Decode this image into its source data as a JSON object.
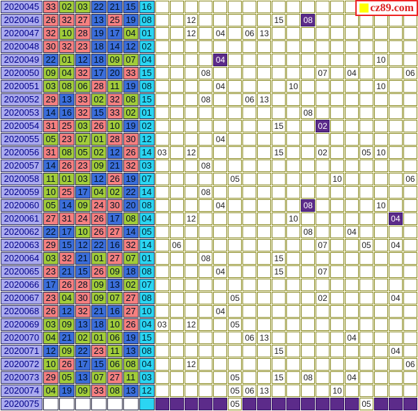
{
  "logo": {
    "text": "cz89.com",
    "square_color": "#ffff00",
    "text_color": "#dd2222",
    "border_color": "#ee2222"
  },
  "colors": {
    "period_bg": "#aaaaee",
    "zone_green_1_11": "#a2cc3a",
    "zone_blue_12_22": "#3b6eda",
    "zone_red_23_33": "#f58080",
    "blue_ball_bg": "#2bd5f2",
    "hit_purple": "#5c2b8a",
    "grid_border": "#888822",
    "page_bg": "#fffff0"
  },
  "chart_data": {
    "type": "table",
    "grid_columns": 18,
    "legend": "rows: period | 6 red-zone balls (G=01-11 green, B=12-22 blue, R=23-33 red) | blue ball | 18 miss-grid cells; hit=purple cell",
    "rows": [
      {
        "period": "2020045",
        "reds": [
          "33R",
          "02G",
          "03G",
          "22B",
          "21B",
          "15B"
        ],
        "blue": "16",
        "marks": []
      },
      {
        "period": "2020046",
        "reds": [
          "26R",
          "32R",
          "27R",
          "13B",
          "25R",
          "19B"
        ],
        "blue": "08",
        "marks": [
          {
            "c": 2,
            "v": "12"
          },
          {
            "c": 8,
            "v": "15"
          },
          {
            "c": 10,
            "v": "08",
            "hit": true
          }
        ]
      },
      {
        "period": "2020047",
        "reds": [
          "32R",
          "10G",
          "28R",
          "19B",
          "17B",
          "04G"
        ],
        "blue": "01",
        "marks": [
          {
            "c": 2,
            "v": "12"
          },
          {
            "c": 4,
            "v": "04"
          },
          {
            "c": 6,
            "v": "06"
          },
          {
            "c": 7,
            "v": "13"
          }
        ]
      },
      {
        "period": "2020048",
        "reds": [
          "30R",
          "32R",
          "23R",
          "18B",
          "14B",
          "12B"
        ],
        "blue": "02",
        "marks": []
      },
      {
        "period": "2020049",
        "reds": [
          "22B",
          "01G",
          "12B",
          "18B",
          "09G",
          "07G"
        ],
        "blue": "04",
        "marks": [
          {
            "c": 4,
            "v": "04",
            "hit": true
          },
          {
            "c": 15,
            "v": "10"
          }
        ]
      },
      {
        "period": "2020050",
        "reds": [
          "09G",
          "04G",
          "32R",
          "17B",
          "20B",
          "33R"
        ],
        "blue": "15",
        "marks": [
          {
            "c": 3,
            "v": "08"
          },
          {
            "c": 11,
            "v": "07"
          },
          {
            "c": 13,
            "v": "04"
          },
          {
            "c": 17,
            "v": "06"
          }
        ]
      },
      {
        "period": "2020051",
        "reds": [
          "03G",
          "08G",
          "06G",
          "28R",
          "11G",
          "19B"
        ],
        "blue": "08",
        "marks": [
          {
            "c": 4,
            "v": "04"
          },
          {
            "c": 9,
            "v": "10"
          },
          {
            "c": 15,
            "v": "10"
          }
        ]
      },
      {
        "period": "2020052",
        "reds": [
          "29R",
          "13B",
          "33R",
          "02G",
          "32R",
          "08G"
        ],
        "blue": "15",
        "marks": [
          {
            "c": 3,
            "v": "08"
          },
          {
            "c": 6,
            "v": "06"
          },
          {
            "c": 7,
            "v": "13"
          }
        ]
      },
      {
        "period": "2020053",
        "reds": [
          "14B",
          "16B",
          "32R",
          "15B",
          "33R",
          "02G"
        ],
        "blue": "01",
        "marks": [
          {
            "c": 10,
            "v": "08"
          }
        ]
      },
      {
        "period": "2020054",
        "reds": [
          "31R",
          "25R",
          "03G",
          "26R",
          "10G",
          "19B"
        ],
        "blue": "02",
        "marks": [
          {
            "c": 8,
            "v": "15"
          },
          {
            "c": 11,
            "v": "02",
            "hit": true
          }
        ]
      },
      {
        "period": "2020055",
        "reds": [
          "05G",
          "23R",
          "07G",
          "01G",
          "28R",
          "30R"
        ],
        "blue": "12",
        "marks": [
          {
            "c": 4,
            "v": "04"
          }
        ]
      },
      {
        "period": "2020056",
        "reds": [
          "31R",
          "08G",
          "05G",
          "02G",
          "12B",
          "26R"
        ],
        "blue": "14",
        "marks": [
          {
            "c": 0,
            "v": "03"
          },
          {
            "c": 2,
            "v": "12"
          },
          {
            "c": 8,
            "v": "15"
          },
          {
            "c": 11,
            "v": "02"
          },
          {
            "c": 14,
            "v": "05"
          },
          {
            "c": 15,
            "v": "10"
          }
        ]
      },
      {
        "period": "2020057",
        "reds": [
          "14B",
          "26R",
          "23R",
          "09G",
          "21B",
          "32R"
        ],
        "blue": "03",
        "marks": [
          {
            "c": 3,
            "v": "08"
          }
        ]
      },
      {
        "period": "2020058",
        "reds": [
          "11G",
          "01G",
          "03G",
          "12B",
          "26R",
          "19B"
        ],
        "blue": "07",
        "marks": [
          {
            "c": 5,
            "v": "05"
          },
          {
            "c": 12,
            "v": "10"
          },
          {
            "c": 17,
            "v": "06"
          }
        ]
      },
      {
        "period": "2020059",
        "reds": [
          "10G",
          "25R",
          "17B",
          "04G",
          "02G",
          "22B"
        ],
        "blue": "14",
        "marks": [
          {
            "c": 3,
            "v": "08"
          }
        ]
      },
      {
        "period": "2020060",
        "reds": [
          "05G",
          "14B",
          "09G",
          "24R",
          "30R",
          "20B"
        ],
        "blue": "08",
        "marks": [
          {
            "c": 4,
            "v": "04"
          },
          {
            "c": 10,
            "v": "08",
            "hit": true
          },
          {
            "c": 15,
            "v": "10"
          }
        ]
      },
      {
        "period": "2020061",
        "reds": [
          "27R",
          "31R",
          "24R",
          "26R",
          "17B",
          "08G"
        ],
        "blue": "04",
        "marks": [
          {
            "c": 2,
            "v": "12"
          },
          {
            "c": 9,
            "v": "10"
          },
          {
            "c": 16,
            "v": "04",
            "hit": true
          }
        ]
      },
      {
        "period": "2020062",
        "reds": [
          "22B",
          "17B",
          "10G",
          "26R",
          "27R",
          "14B"
        ],
        "blue": "05",
        "marks": [
          {
            "c": 10,
            "v": "08"
          },
          {
            "c": 13,
            "v": "04"
          }
        ]
      },
      {
        "period": "2020063",
        "reds": [
          "29R",
          "15B",
          "12B",
          "22B",
          "16B",
          "32R"
        ],
        "blue": "14",
        "marks": [
          {
            "c": 1,
            "v": "06"
          },
          {
            "c": 11,
            "v": "07"
          },
          {
            "c": 14,
            "v": "05"
          },
          {
            "c": 16,
            "v": "04"
          }
        ]
      },
      {
        "period": "2020064",
        "reds": [
          "03G",
          "32R",
          "21B",
          "01G",
          "27R",
          "07G"
        ],
        "blue": "01",
        "marks": [
          {
            "c": 3,
            "v": "08"
          },
          {
            "c": 8,
            "v": "15"
          }
        ]
      },
      {
        "period": "2020065",
        "reds": [
          "23R",
          "21B",
          "15B",
          "26R",
          "09G",
          "18B"
        ],
        "blue": "08",
        "marks": [
          {
            "c": 4,
            "v": "04"
          },
          {
            "c": 8,
            "v": "15"
          },
          {
            "c": 11,
            "v": "07"
          }
        ]
      },
      {
        "period": "2020066",
        "reds": [
          "17B",
          "26R",
          "28R",
          "09G",
          "13B",
          "02G"
        ],
        "blue": "07",
        "marks": []
      },
      {
        "period": "2020067",
        "reds": [
          "23R",
          "04G",
          "30R",
          "09G",
          "07G",
          "27R"
        ],
        "blue": "08",
        "marks": [
          {
            "c": 5,
            "v": "05"
          },
          {
            "c": 11,
            "v": "02"
          },
          {
            "c": 16,
            "v": "04"
          }
        ]
      },
      {
        "period": "2020068",
        "reds": [
          "26R",
          "12B",
          "32R",
          "21B",
          "16B",
          "27R"
        ],
        "blue": "10",
        "marks": [
          {
            "c": 4,
            "v": "04"
          }
        ]
      },
      {
        "period": "2020069",
        "reds": [
          "03G",
          "09G",
          "13B",
          "18B",
          "10G",
          "26R"
        ],
        "blue": "04",
        "marks": [
          {
            "c": 0,
            "v": "03"
          },
          {
            "c": 2,
            "v": "12"
          },
          {
            "c": 5,
            "v": "05"
          }
        ]
      },
      {
        "period": "2020070",
        "reds": [
          "04G",
          "21B",
          "02G",
          "01G",
          "06G",
          "19B"
        ],
        "blue": "15",
        "marks": [
          {
            "c": 6,
            "v": "06"
          },
          {
            "c": 7,
            "v": "13"
          },
          {
            "c": 13,
            "v": "04"
          }
        ]
      },
      {
        "period": "2020071",
        "reds": [
          "12B",
          "09G",
          "22B",
          "23R",
          "11G",
          "13B"
        ],
        "blue": "08",
        "marks": [
          {
            "c": 8,
            "v": "15"
          },
          {
            "c": 16,
            "v": "04"
          }
        ]
      },
      {
        "period": "2020072",
        "reds": [
          "10G",
          "26R",
          "17B",
          "15B",
          "06G",
          "08G"
        ],
        "blue": "04",
        "marks": [
          {
            "c": 2,
            "v": "12"
          },
          {
            "c": 17,
            "v": "06"
          }
        ]
      },
      {
        "period": "2020073",
        "reds": [
          "29R",
          "05G",
          "13B",
          "07G",
          "27R",
          "11G"
        ],
        "blue": "03",
        "marks": [
          {
            "c": 5,
            "v": "05"
          },
          {
            "c": 8,
            "v": "15"
          },
          {
            "c": 10,
            "v": "08"
          },
          {
            "c": 13,
            "v": "04"
          }
        ]
      },
      {
        "period": "2020074",
        "reds": [
          "04G",
          "19B",
          "09G",
          "33R",
          "08G",
          "13B"
        ],
        "blue": "12",
        "marks": [
          {
            "c": 5,
            "v": "05"
          },
          {
            "c": 6,
            "v": "06"
          },
          {
            "c": 7,
            "v": "13"
          },
          {
            "c": 12,
            "v": "10"
          }
        ]
      },
      {
        "period": "2020075",
        "reds": [],
        "blue": "",
        "future": true,
        "marks": [
          {
            "c": 5,
            "v": "05"
          },
          {
            "c": 14,
            "v": "05"
          }
        ]
      }
    ]
  }
}
